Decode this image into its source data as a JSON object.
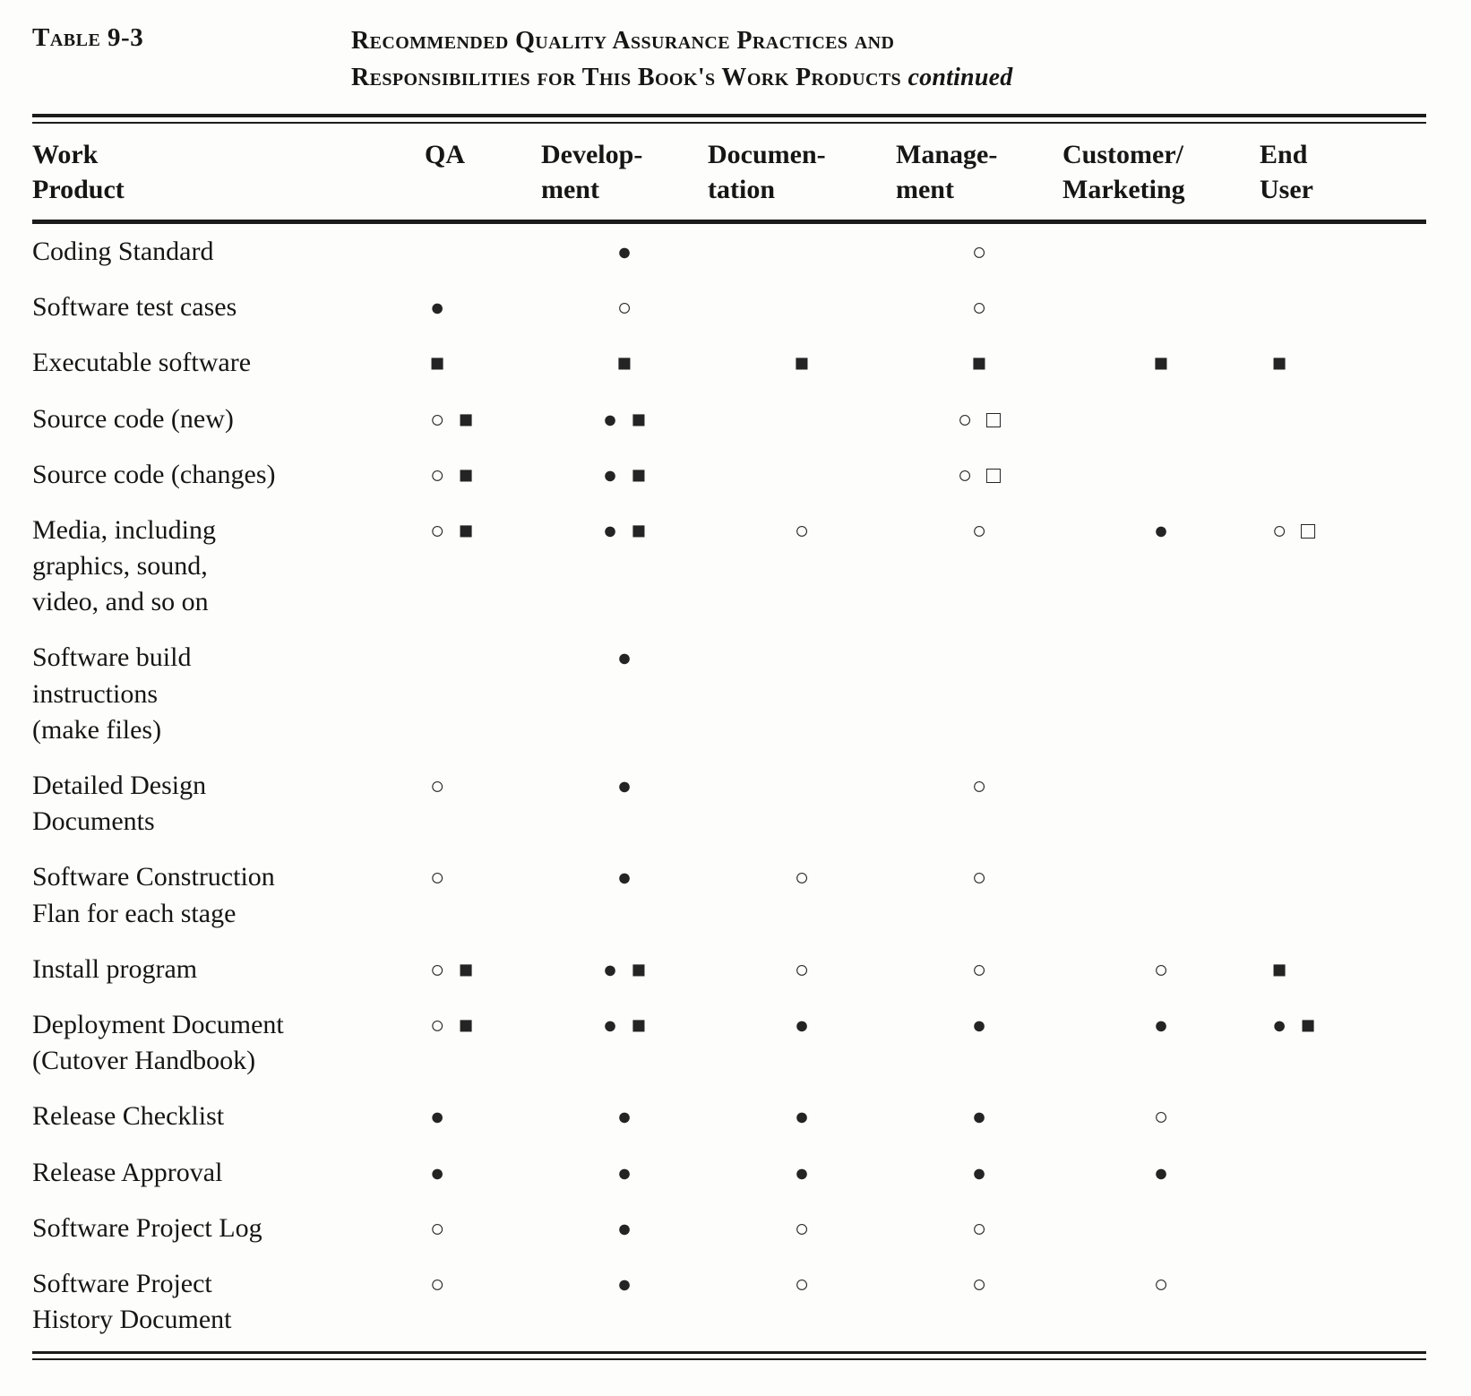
{
  "table": {
    "tag": "Table 9-3",
    "title_line1": "Recommended Quality Assurance Practices and",
    "title_line2": "Responsibilities for This Book's Work Products",
    "title_continued": "continued",
    "columns": [
      "Work\nProduct",
      "QA",
      "Develop-\nment",
      "Documen-\ntation",
      "Manage-\nment",
      "Customer/\nMarketing",
      "End\nUser"
    ],
    "legend": {
      "filled_circle": "●",
      "open_circle": "○",
      "filled_square": "■",
      "open_square": "□"
    },
    "rows": [
      {
        "label": "Coding Standard",
        "cells": [
          "",
          "●",
          "",
          "○",
          "",
          ""
        ]
      },
      {
        "label": "Software test cases",
        "cells": [
          "●",
          "○",
          "",
          "○",
          "",
          ""
        ]
      },
      {
        "label": "Executable software",
        "cells": [
          "■",
          "■",
          "■",
          "■",
          "■",
          "■"
        ]
      },
      {
        "label": "Source code (new)",
        "cells": [
          "○ ■",
          "● ■",
          "",
          "○ □",
          "",
          ""
        ]
      },
      {
        "label": "Source code (changes)",
        "cells": [
          "○ ■",
          "● ■",
          "",
          "○ □",
          "",
          ""
        ]
      },
      {
        "label": "Media, including\ngraphics, sound,\nvideo, and so on",
        "cells": [
          "○ ■",
          "● ■",
          "○",
          "○",
          "●",
          "○ □"
        ]
      },
      {
        "label": "Software build\ninstructions\n(make files)",
        "cells": [
          "",
          "●",
          "",
          "",
          "",
          ""
        ]
      },
      {
        "label": "Detailed Design\nDocuments",
        "cells": [
          "○",
          "●",
          "",
          "○",
          "",
          ""
        ]
      },
      {
        "label": "Software Construction\nFlan for each stage",
        "cells": [
          "○",
          "●",
          "○",
          "○",
          "",
          ""
        ]
      },
      {
        "label": "Install program",
        "cells": [
          "○ ■",
          "● ■",
          "○",
          "○",
          "○",
          "■"
        ]
      },
      {
        "label": "Deployment Document\n(Cutover Handbook)",
        "cells": [
          "○ ■",
          "● ■",
          "●",
          "●",
          "●",
          "● ■"
        ]
      },
      {
        "label": "Release Checklist",
        "cells": [
          "●",
          "●",
          "●",
          "●",
          "○",
          ""
        ]
      },
      {
        "label": "Release Approval",
        "cells": [
          "●",
          "●",
          "●",
          "●",
          "●",
          ""
        ]
      },
      {
        "label": "Software Project Log",
        "cells": [
          "○",
          "●",
          "○",
          "○",
          "",
          ""
        ]
      },
      {
        "label": "Software Project\nHistory Document",
        "cells": [
          "○",
          "●",
          "○",
          "○",
          "○",
          ""
        ]
      }
    ]
  }
}
